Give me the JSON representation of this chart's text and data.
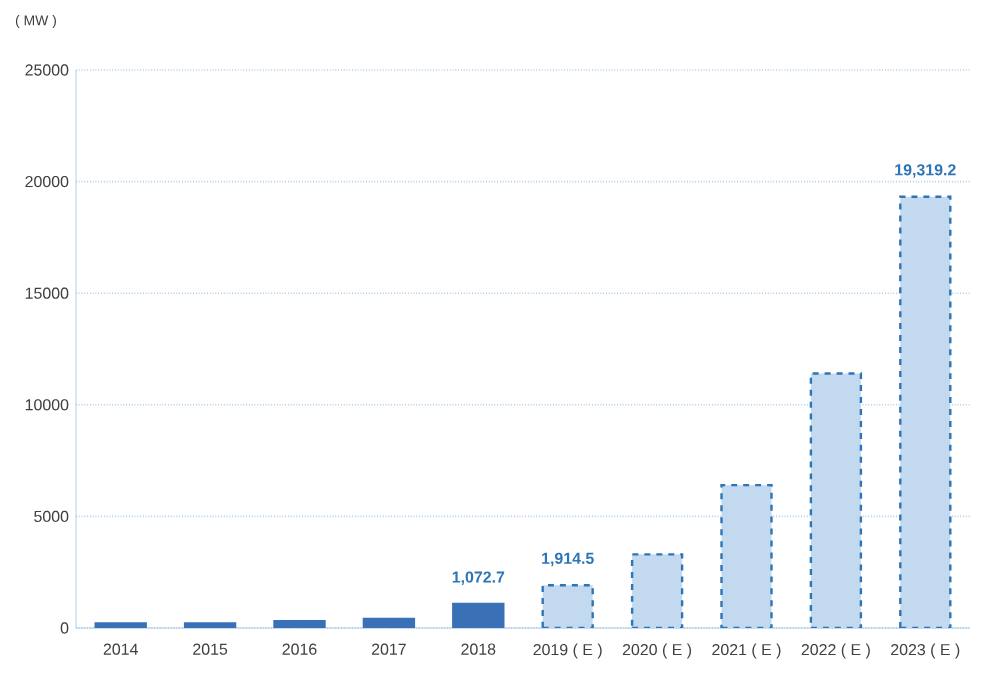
{
  "chart_data": {
    "type": "bar",
    "ylabel": "( MW )",
    "categories": [
      "2014",
      "2015",
      "2016",
      "2017",
      "2018",
      "2019 ( E )",
      "2020 ( E )",
      "2021 ( E )",
      "2022 ( E )",
      "2023 ( E )"
    ],
    "series": [
      {
        "color": "#3a70b6",
        "values": [
          200,
          200,
          300,
          400,
          1072.7,
          null,
          null,
          null,
          null,
          null
        ],
        "value_labels": [
          null,
          null,
          null,
          null,
          "1,072.7",
          null,
          null,
          null,
          null,
          null
        ]
      },
      {
        "color": "#c2d9ef",
        "line_style": "dashed",
        "values": [
          null,
          null,
          null,
          null,
          null,
          1914.5,
          3300,
          6400,
          11400,
          19319.2
        ],
        "value_labels": [
          null,
          null,
          null,
          null,
          null,
          "1,914.5",
          null,
          null,
          null,
          "19,319.2"
        ]
      }
    ],
    "ylim": [
      0,
      25000
    ],
    "yticks": [
      0,
      5000,
      10000,
      15000,
      20000,
      25000
    ],
    "grid": "y"
  }
}
